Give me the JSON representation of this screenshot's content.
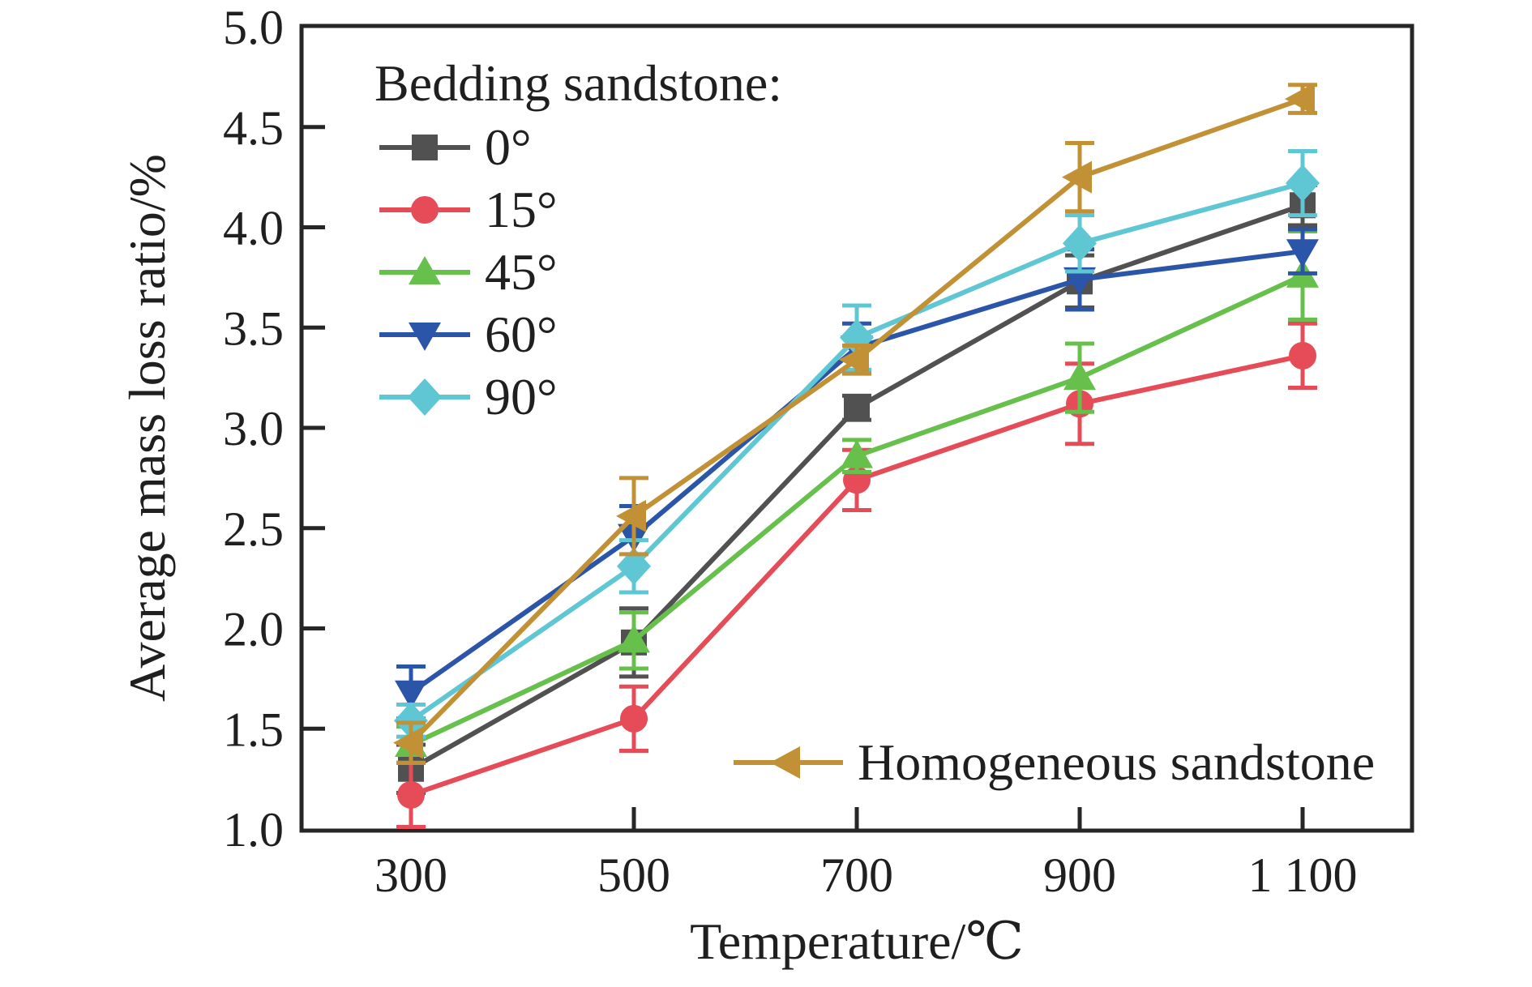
{
  "chart_data": {
    "type": "line",
    "title": "",
    "xlabel": "Temperature/℃",
    "ylabel": "Average mass loss ratio/%",
    "x_values": [
      300,
      500,
      700,
      900,
      1100
    ],
    "x_tick_labels": [
      "300",
      "500",
      "700",
      "900",
      "1 100"
    ],
    "y_ticks": [
      1.0,
      1.5,
      2.0,
      2.5,
      3.0,
      3.5,
      4.0,
      4.5,
      5.0
    ],
    "y_tick_labels": [
      "1.0",
      "1.5",
      "2.0",
      "2.5",
      "3.0",
      "3.5",
      "4.0",
      "4.5",
      "5.0"
    ],
    "ylim": [
      1.0,
      5.0
    ],
    "grid": false,
    "legend1_title": "Bedding sandstone:",
    "legend1_position": "upper-left-inside",
    "legend2_position": "lower-right-inside",
    "axis_color": "#262626",
    "series": [
      {
        "name": "0°",
        "marker": "square",
        "color": "#515151",
        "values": [
          1.3,
          1.93,
          3.1,
          3.73,
          4.11
        ],
        "errors": [
          0.12,
          0.17,
          0.06,
          0.13,
          0.1
        ]
      },
      {
        "name": "15°",
        "marker": "circle",
        "color": "#E64C57",
        "values": [
          1.17,
          1.55,
          2.74,
          3.12,
          3.36
        ],
        "errors": [
          0.16,
          0.16,
          0.15,
          0.2,
          0.16
        ]
      },
      {
        "name": "45°",
        "marker": "triangle-up",
        "color": "#67C04B",
        "values": [
          1.42,
          1.94,
          2.86,
          3.25,
          3.76
        ],
        "errors": [
          0.09,
          0.14,
          0.08,
          0.17,
          0.22
        ]
      },
      {
        "name": "60°",
        "marker": "triangle-down",
        "color": "#2B55A8",
        "values": [
          1.68,
          2.46,
          3.4,
          3.74,
          3.88
        ],
        "errors": [
          0.13,
          0.15,
          0.12,
          0.15,
          0.11
        ]
      },
      {
        "name": "90°",
        "marker": "diamond",
        "color": "#5FC6D4",
        "values": [
          1.54,
          2.31,
          3.45,
          3.92,
          4.22
        ],
        "errors": [
          0.08,
          0.13,
          0.16,
          0.14,
          0.16
        ]
      },
      {
        "name": "Homogeneous sandstone",
        "marker": "triangle-left",
        "color": "#C29136",
        "values": [
          1.43,
          2.56,
          3.34,
          4.25,
          4.64
        ],
        "errors": [
          0.1,
          0.19,
          0.07,
          0.17,
          0.07
        ]
      }
    ]
  }
}
